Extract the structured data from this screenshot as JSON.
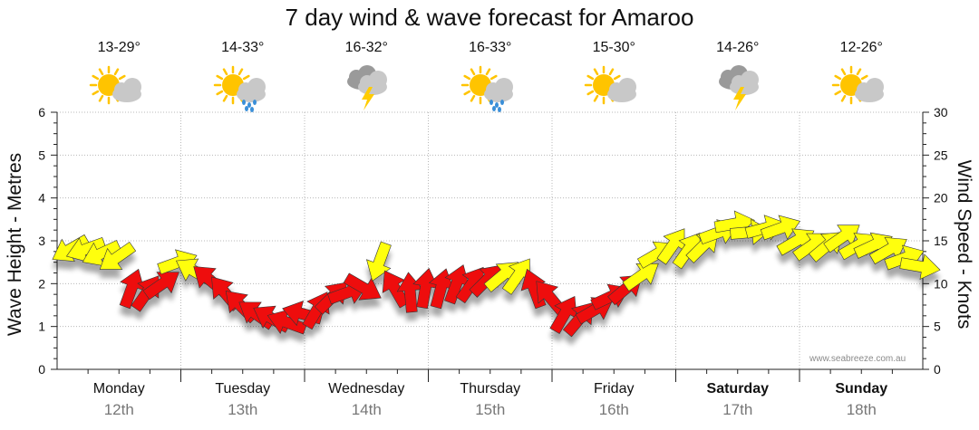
{
  "title": "7 day wind & wave forecast for Amaroo",
  "watermark": "www.seabreeze.com.au",
  "axes": {
    "left_title": "Wave Height - Metres",
    "right_title": "Wind Speed - Knots"
  },
  "days": [
    {
      "name": "Monday",
      "date": "12th",
      "temp": "13-29°",
      "icon": "partly-cloudy-icon",
      "bold": false
    },
    {
      "name": "Tuesday",
      "date": "13th",
      "temp": "14-33°",
      "icon": "partly-cloudy-rain-icon",
      "bold": false
    },
    {
      "name": "Wednesday",
      "date": "14th",
      "temp": "16-32°",
      "icon": "storm-icon",
      "bold": false
    },
    {
      "name": "Thursday",
      "date": "15th",
      "temp": "16-33°",
      "icon": "partly-cloudy-rain-icon",
      "bold": false
    },
    {
      "name": "Friday",
      "date": "16th",
      "temp": "15-30°",
      "icon": "partly-cloudy-icon",
      "bold": false
    },
    {
      "name": "Saturday",
      "date": "17th",
      "temp": "14-26°",
      "icon": "storm-icon",
      "bold": true
    },
    {
      "name": "Sunday",
      "date": "18th",
      "temp": "12-26°",
      "icon": "partly-cloudy-icon",
      "bold": true
    }
  ],
  "colors": {
    "strong_wind": "#ee1111",
    "light_wind": "#ffff11",
    "arrow_outline": "#333333",
    "grid": "#b8b8b8",
    "sun": "#ffc400",
    "cloud": "#c8c8c8",
    "rain": "#3a8fd8",
    "lightning": "#ffcc00"
  },
  "chart_data": {
    "type": "line",
    "xlabel": "",
    "ylabel": "Wave Height - Metres",
    "y2label": "Wind Speed - Knots",
    "ylim": [
      0,
      6
    ],
    "y2lim": [
      0,
      30
    ],
    "y_ticks": [
      0,
      1,
      2,
      3,
      4,
      5,
      6
    ],
    "y2_ticks": [
      0,
      5,
      10,
      15,
      20,
      25,
      30
    ],
    "grid": true,
    "categories": [
      "Monday 12th",
      "Tuesday 13th",
      "Wednesday 14th",
      "Thursday 15th",
      "Friday 16th",
      "Saturday 17th",
      "Sunday 18th"
    ],
    "wind_threshold_knots": 11,
    "series": [
      {
        "unit": "knots",
        "x": [
          0.0,
          0.125,
          0.25,
          0.375,
          0.5,
          0.625,
          0.75,
          0.875,
          1.0,
          1.125,
          1.25,
          1.375,
          1.5,
          1.625,
          1.75,
          1.875,
          2.0,
          2.125,
          2.25,
          2.375,
          2.5,
          2.625,
          2.75,
          2.875,
          3.0,
          3.125,
          3.25,
          3.375,
          3.5,
          3.625,
          3.75,
          3.875,
          4.0,
          4.125,
          4.25,
          4.375,
          4.5,
          4.625,
          4.75,
          4.875,
          5.0,
          5.125,
          5.25,
          5.375,
          5.5,
          5.625,
          5.75,
          5.875,
          6.0,
          6.125,
          6.25,
          6.375,
          6.5,
          6.625,
          6.75,
          6.875
        ],
        "values": [
          14,
          14,
          13.5,
          13,
          9.5,
          9,
          10,
          12.5,
          11.5,
          10.5,
          9,
          7.5,
          6.5,
          6,
          5.5,
          6.5,
          7,
          8.5,
          9,
          9.5,
          12.5,
          9.5,
          9,
          9.5,
          9.5,
          10,
          10,
          10.5,
          11,
          11,
          9.5,
          8.5,
          6.5,
          6,
          7,
          8.5,
          9.5,
          11,
          13.5,
          14.5,
          14,
          14.5,
          16,
          17,
          16,
          16.5,
          16.5,
          15,
          14.5,
          14.5,
          15.5,
          14.5,
          14.5,
          14,
          13,
          12
        ],
        "directions_deg": [
          60,
          70,
          65,
          55,
          200,
          215,
          235,
          250,
          120,
          130,
          140,
          135,
          125,
          120,
          110,
          105,
          210,
          225,
          250,
          300,
          20,
          150,
          175,
          190,
          195,
          200,
          215,
          225,
          230,
          215,
          160,
          140,
          210,
          220,
          240,
          245,
          230,
          235,
          240,
          215,
          215,
          225,
          250,
          260,
          265,
          255,
          250,
          240,
          235,
          230,
          235,
          240,
          245,
          240,
          250,
          280
        ]
      }
    ]
  }
}
